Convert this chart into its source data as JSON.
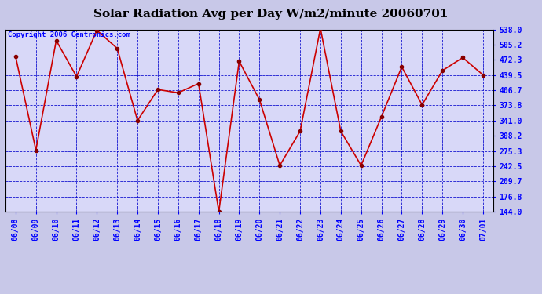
{
  "title": "Solar Radiation Avg per Day W/m2/minute 20060701",
  "copyright": "Copyright 2006 Centronics.com",
  "dates": [
    "06/08",
    "06/09",
    "06/10",
    "06/11",
    "06/12",
    "06/13",
    "06/14",
    "06/15",
    "06/16",
    "06/17",
    "06/18",
    "06/19",
    "06/20",
    "06/21",
    "06/22",
    "06/23",
    "06/24",
    "06/25",
    "06/26",
    "06/27",
    "06/28",
    "06/29",
    "06/30",
    "07/01"
  ],
  "values": [
    479.5,
    277.0,
    514.0,
    436.0,
    536.0,
    497.0,
    341.0,
    408.0,
    401.0,
    421.0,
    144.0,
    469.0,
    386.0,
    244.0,
    318.0,
    540.0,
    318.0,
    244.0,
    349.0,
    457.0,
    375.0,
    449.0,
    477.0,
    439.5
  ],
  "ylim_min": 144.0,
  "ylim_max": 538.0,
  "yticks": [
    144.0,
    176.8,
    209.7,
    242.5,
    275.3,
    308.2,
    341.0,
    373.8,
    406.7,
    439.5,
    472.3,
    505.2,
    538.0
  ],
  "line_color": "#cc0000",
  "marker_color": "#880000",
  "fig_bg_color": "#c8c8e8",
  "plot_bg_color": "#d8d8f8",
  "grid_color": "#0000cc",
  "title_fontsize": 11,
  "tick_fontsize": 7,
  "copyright_fontsize": 6.5
}
